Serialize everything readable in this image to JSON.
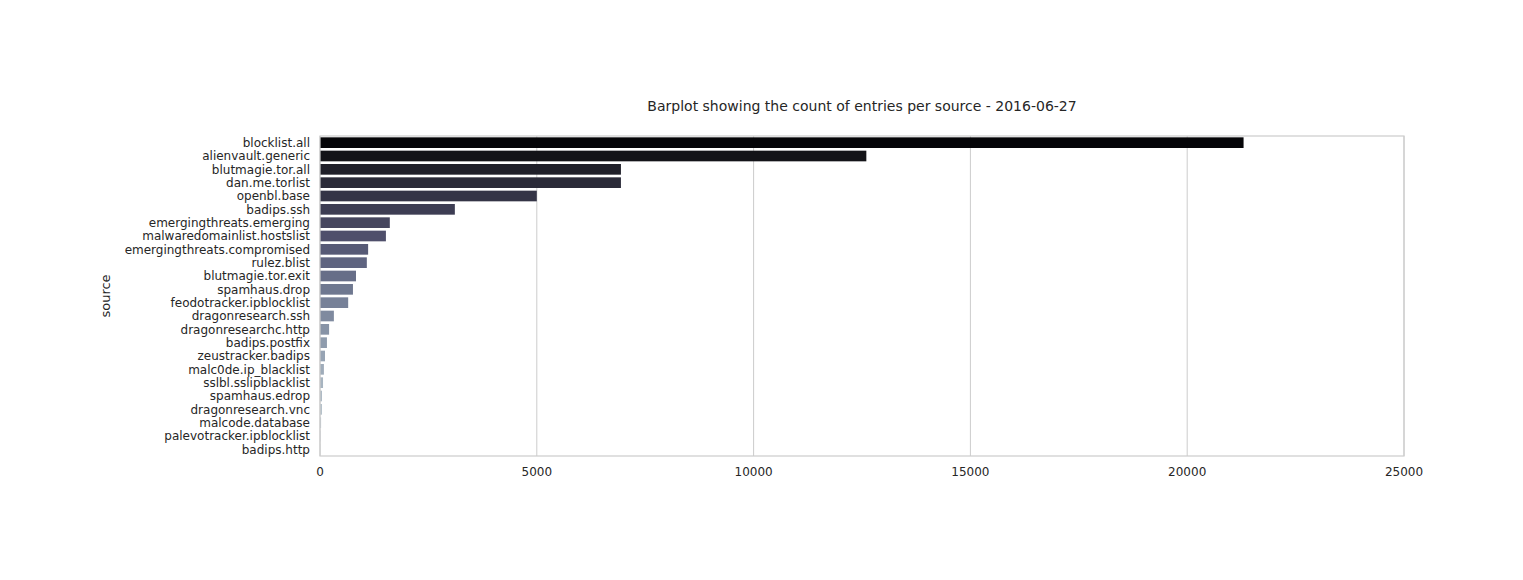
{
  "chart_data": {
    "type": "bar",
    "orientation": "horizontal",
    "title": "Barplot showing the count of entries per source - 2016-06-27",
    "y_label": "source",
    "categories": [
      "blocklist.all",
      "alienvault.generic",
      "blutmagie.tor.all",
      "dan.me.torlist",
      "openbl.base",
      "badips.ssh",
      "emergingthreats.emerging",
      "malwaredomainlist.hostslist",
      "emergingthreats.compromised",
      "rulez.blist",
      "blutmagie.tor.exit",
      "spamhaus.drop",
      "feodotracker.ipblocklist",
      "dragonresearch.ssh",
      "dragonresearchc.http",
      "badips.postfix",
      "zeustracker.badips",
      "malc0de.ip_blacklist",
      "sslbl.sslipblacklist",
      "spamhaus.edrop",
      "dragonresearch.vnc",
      "malcode.database",
      "palevotracker.ipblocklist",
      "badips.http"
    ],
    "values": [
      21300,
      12600,
      6940,
      6940,
      5000,
      3110,
      1610,
      1520,
      1110,
      1080,
      830,
      760,
      650,
      320,
      210,
      160,
      115,
      90,
      70,
      46,
      46,
      25,
      10,
      5
    ],
    "colors": [
      "#050508",
      "#131318",
      "#1f1f29",
      "#2a2a38",
      "#343446",
      "#3d3d53",
      "#46465f",
      "#4f4f6b",
      "#575a76",
      "#5f6480",
      "#676e88",
      "#6f7890",
      "#778198",
      "#7f8a9f",
      "#8793a6",
      "#8f9cad",
      "#97a4b4",
      "#9facba",
      "#a7b4c0",
      "#afbbc6",
      "#b6c2cb",
      "#bdc8d0",
      "#c3cdd5",
      "#c9d2d9"
    ],
    "xlim": [
      0,
      25000
    ],
    "xticks": [
      0,
      5000,
      10000,
      15000,
      20000,
      25000
    ],
    "grid": true
  }
}
